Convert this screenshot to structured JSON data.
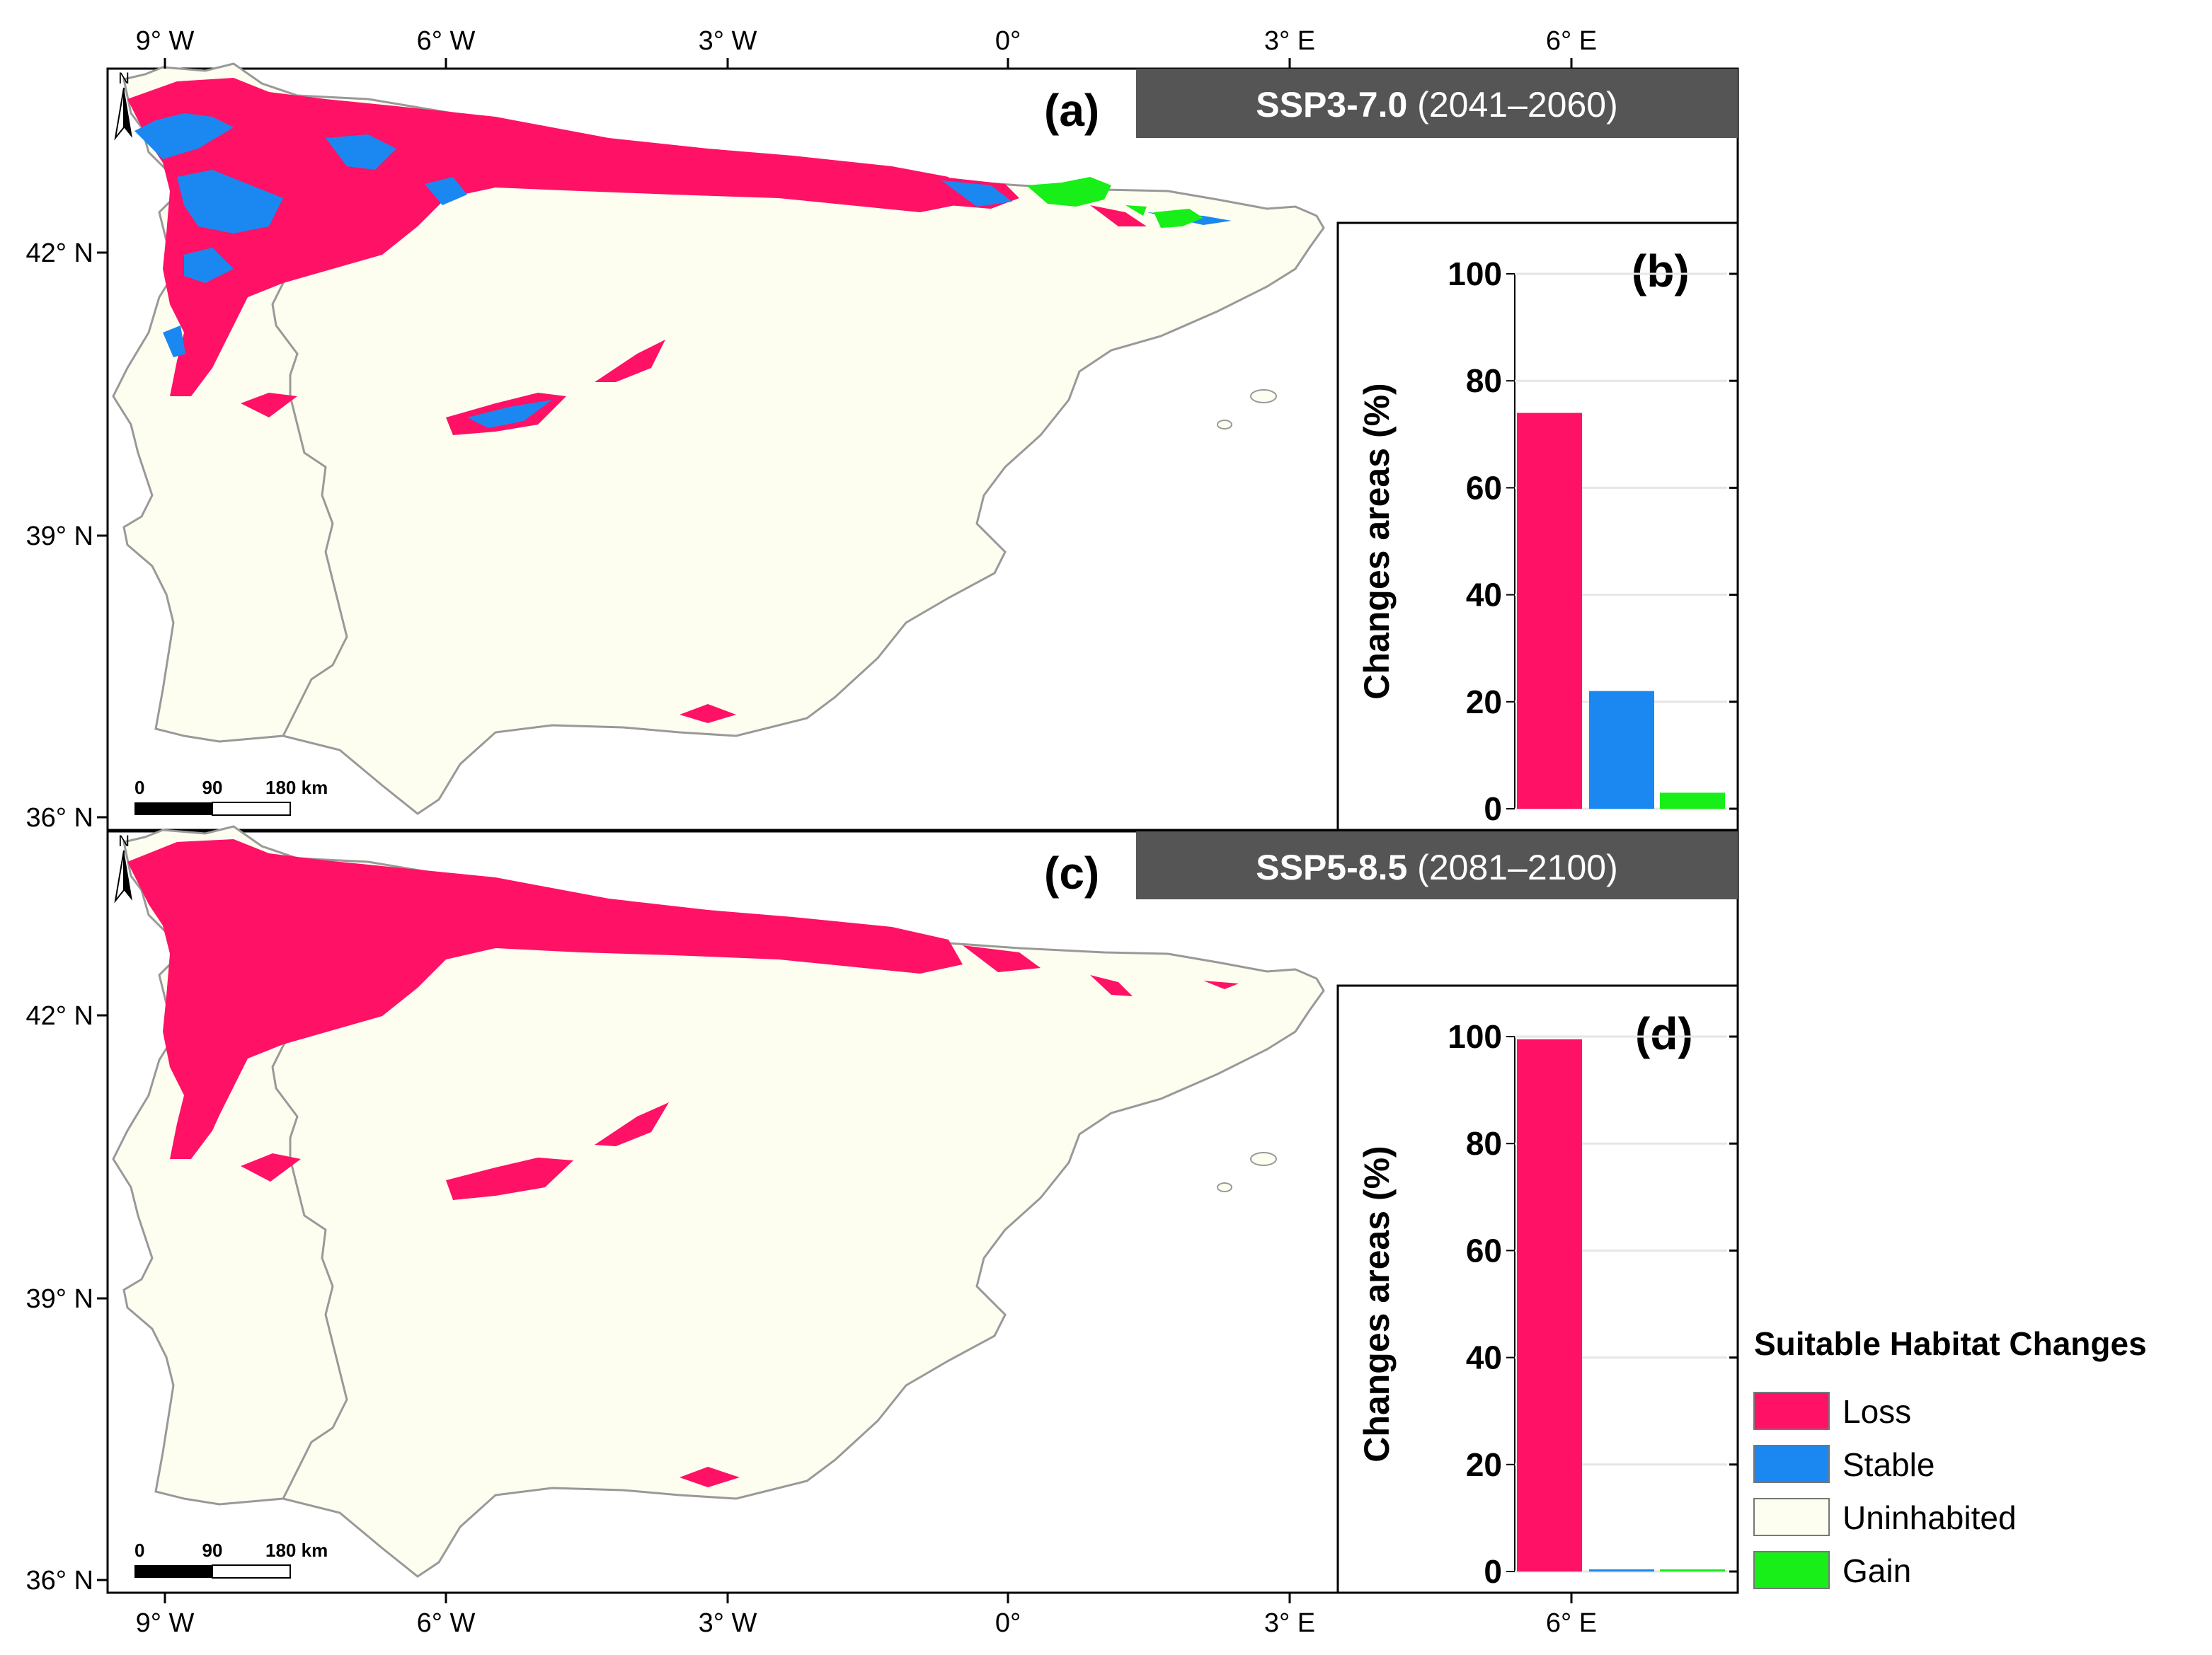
{
  "colors": {
    "loss": "#FF1166",
    "stable": "#1A88F0",
    "uninhabited": "#FEFEF0",
    "gain": "#18EE18",
    "banner": "#555555",
    "land_outline": "#999999"
  },
  "axes": {
    "lon_ticks": [
      "9° W",
      "6° W",
      "3° W",
      "0°",
      "3° E",
      "6° E"
    ],
    "lat_ticks": [
      "42° N",
      "39° N",
      "36° N"
    ]
  },
  "north_arrow": {
    "letter": "N",
    "icon": "north-arrow-icon"
  },
  "scale_bar": {
    "labels": [
      "0",
      "90",
      "180 km"
    ]
  },
  "panels": [
    {
      "map_tag": "(a)",
      "scenario": "SSP3-7.0",
      "period": "(2041–2060)",
      "chart_tag": "(b)"
    },
    {
      "map_tag": "(c)",
      "scenario": "SSP5-8.5",
      "period": "(2081–2100)",
      "chart_tag": "(d)"
    }
  ],
  "chart_data": [
    {
      "type": "bar",
      "panel": "(b)",
      "categories": [
        "Loss",
        "Stable",
        "Gain"
      ],
      "values": [
        74,
        22,
        3
      ],
      "ylabel": "Changes areas (%)",
      "ylim": [
        0,
        100
      ],
      "yticks": [
        "0",
        "20",
        "40",
        "60",
        "80",
        "100"
      ],
      "grid": true
    },
    {
      "type": "bar",
      "panel": "(d)",
      "categories": [
        "Loss",
        "Stable",
        "Gain"
      ],
      "values": [
        99.5,
        0.3,
        0.2
      ],
      "ylabel": "Changes areas (%)",
      "ylim": [
        0,
        100
      ],
      "yticks": [
        "0",
        "20",
        "40",
        "60",
        "80",
        "100"
      ],
      "grid": true
    }
  ],
  "legend": {
    "title": "Suitable Habitat Changes",
    "items": [
      {
        "label": "Loss",
        "color": "#FF1166"
      },
      {
        "label": "Stable",
        "color": "#1A88F0"
      },
      {
        "label": "Uninhabited",
        "color": "#FEFEF0"
      },
      {
        "label": "Gain",
        "color": "#18EE18"
      }
    ]
  }
}
